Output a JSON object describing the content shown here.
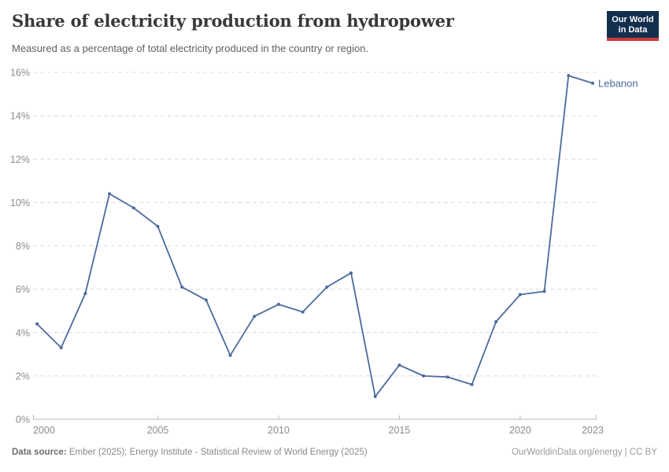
{
  "header": {
    "title": "Share of electricity production from hydropower",
    "subtitle": "Measured as a percentage of total electricity produced in the country or region.",
    "logo": {
      "line1": "Our World",
      "line2": "in Data"
    }
  },
  "chart_data": {
    "type": "line",
    "title": "Share of electricity production from hydropower",
    "series": [
      {
        "name": "Lebanon",
        "x": [
          2000,
          2001,
          2002,
          2003,
          2004,
          2005,
          2006,
          2007,
          2008,
          2009,
          2010,
          2011,
          2012,
          2013,
          2014,
          2015,
          2016,
          2017,
          2018,
          2019,
          2020,
          2021,
          2022,
          2023
        ],
        "values": [
          4.4,
          3.3,
          5.8,
          10.4,
          9.75,
          8.9,
          6.1,
          5.5,
          2.95,
          4.75,
          5.3,
          4.95,
          6.1,
          6.75,
          1.05,
          2.5,
          2.0,
          1.95,
          1.6,
          4.5,
          5.75,
          5.9,
          15.85,
          15.5
        ]
      }
    ],
    "unit": "%",
    "xlabel": "",
    "ylabel": "",
    "ylim": [
      0,
      16
    ],
    "yticks": [
      0,
      2,
      4,
      6,
      8,
      10,
      12,
      14,
      16
    ],
    "ytick_suffix": "%",
    "xticks": [
      2000,
      2005,
      2010,
      2015,
      2020,
      2023
    ],
    "grid": "horizontal-dashed",
    "legend_position": "end-of-line-label",
    "line_color": "#4c6a9c",
    "grid_color": "#dcdcdc",
    "axis_color": "#bababa",
    "tick_label_color": "#8b8b8b"
  },
  "footer": {
    "source_label": "Data source:",
    "source_text": " Ember (2025); Energy Institute - Statistical Review of World Energy (2025)",
    "credit": "OurWorldinData.org/energy | CC BY"
  }
}
